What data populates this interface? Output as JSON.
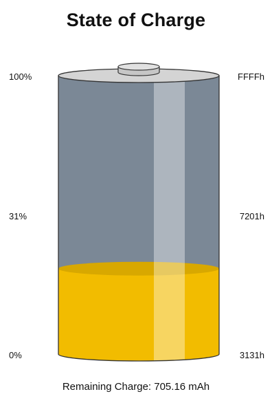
{
  "title": "State of Charge",
  "scale_left": {
    "top": "100%",
    "middle": "31%",
    "bottom": "0%"
  },
  "scale_right": {
    "top": "FFFFh",
    "middle": "7201h",
    "bottom": "3131h"
  },
  "charge_level": 0.31,
  "remaining_charge": "Remaining Charge: 705.16 mAh",
  "colors": {
    "empty_body": "#7b8896",
    "fill": "#f2bc00",
    "fill_top": "#d8a800",
    "cap": "#d4d4d4",
    "outline": "#333333"
  }
}
